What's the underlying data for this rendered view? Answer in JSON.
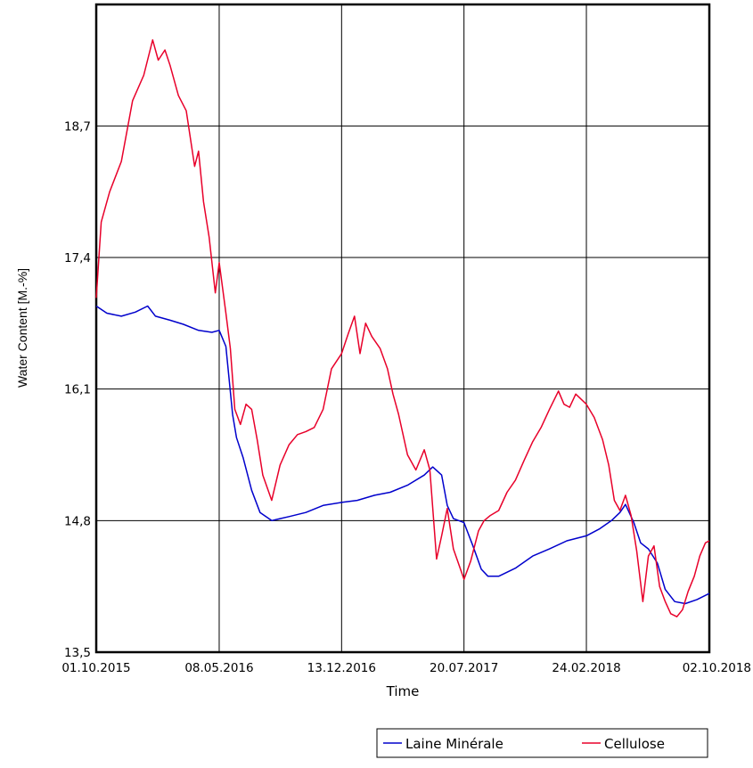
{
  "chart_data": {
    "type": "line",
    "title": "",
    "xlabel": "Time",
    "ylabel": "Water Content [M.-%]",
    "ylim": [
      13.5,
      19.9
    ],
    "yticks": [
      13.5,
      14.8,
      16.1,
      17.4,
      18.7
    ],
    "ytick_labels": [
      "13,5",
      "14,8",
      "16,1",
      "17,4",
      "18,7"
    ],
    "xlim": [
      "2015-10-01",
      "2018-10-02"
    ],
    "xticks": [
      "2015-10-01",
      "2016-05-08",
      "2016-12-13",
      "2017-07-20",
      "2018-02-24",
      "2018-10-02"
    ],
    "xtick_labels": [
      "01.10.2015",
      "08.05.2016",
      "13.12.2016",
      "20.07.2017",
      "24.02.2018",
      "02.10.2018"
    ],
    "grid": true,
    "legend": "bottom-right",
    "series": [
      {
        "name": "Laine Minérale",
        "color": "#0000cc",
        "x": [
          "2015-10-01",
          "2015-10-20",
          "2015-11-15",
          "2015-12-10",
          "2016-01-01",
          "2016-01-15",
          "2016-02-10",
          "2016-03-05",
          "2016-04-01",
          "2016-04-25",
          "2016-05-08",
          "2016-05-20",
          "2016-06-01",
          "2016-06-08",
          "2016-06-20",
          "2016-07-05",
          "2016-07-20",
          "2016-08-10",
          "2016-08-25",
          "2016-09-10",
          "2016-10-10",
          "2016-11-10",
          "2016-12-13",
          "2017-01-10",
          "2017-02-10",
          "2017-03-10",
          "2017-04-10",
          "2017-05-10",
          "2017-05-25",
          "2017-06-10",
          "2017-06-20",
          "2017-07-01",
          "2017-07-20",
          "2017-08-05",
          "2017-08-20",
          "2017-09-01",
          "2017-09-20",
          "2017-10-20",
          "2017-11-20",
          "2017-12-20",
          "2018-01-20",
          "2018-02-24",
          "2018-03-20",
          "2018-04-10",
          "2018-04-25",
          "2018-05-05",
          "2018-05-20",
          "2018-06-01",
          "2018-06-15",
          "2018-07-01",
          "2018-07-15",
          "2018-08-01",
          "2018-08-20",
          "2018-09-10",
          "2018-10-02"
        ],
        "values": [
          16.92,
          16.85,
          16.82,
          16.86,
          16.92,
          16.82,
          16.78,
          16.74,
          16.68,
          16.66,
          16.68,
          16.52,
          15.85,
          15.62,
          15.42,
          15.1,
          14.88,
          14.8,
          14.82,
          14.84,
          14.88,
          14.95,
          14.98,
          15.0,
          15.05,
          15.08,
          15.15,
          15.25,
          15.33,
          15.25,
          14.95,
          14.82,
          14.78,
          14.55,
          14.32,
          14.25,
          14.25,
          14.33,
          14.45,
          14.52,
          14.6,
          14.65,
          14.72,
          14.8,
          14.88,
          14.96,
          14.78,
          14.58,
          14.52,
          14.38,
          14.12,
          14.0,
          13.98,
          14.02,
          14.08
        ]
      },
      {
        "name": "Cellulose",
        "color": "#e8002a",
        "x": [
          "2015-10-01",
          "2015-10-10",
          "2015-10-25",
          "2015-11-15",
          "2015-12-05",
          "2015-12-25",
          "2016-01-10",
          "2016-01-20",
          "2016-02-01",
          "2016-02-10",
          "2016-02-25",
          "2016-03-10",
          "2016-03-25",
          "2016-04-01",
          "2016-04-10",
          "2016-04-20",
          "2016-05-01",
          "2016-05-08",
          "2016-05-20",
          "2016-05-28",
          "2016-06-05",
          "2016-06-15",
          "2016-06-25",
          "2016-07-05",
          "2016-07-15",
          "2016-07-25",
          "2016-08-10",
          "2016-08-25",
          "2016-09-10",
          "2016-09-25",
          "2016-10-10",
          "2016-10-25",
          "2016-11-10",
          "2016-11-25",
          "2016-12-13",
          "2016-12-25",
          "2017-01-05",
          "2017-01-15",
          "2017-01-25",
          "2017-02-05",
          "2017-02-20",
          "2017-03-05",
          "2017-03-15",
          "2017-03-25",
          "2017-04-10",
          "2017-04-25",
          "2017-05-10",
          "2017-05-20",
          "2017-06-01",
          "2017-06-10",
          "2017-06-20",
          "2017-07-01",
          "2017-07-20",
          "2017-08-01",
          "2017-08-15",
          "2017-08-25",
          "2017-09-05",
          "2017-09-20",
          "2017-10-05",
          "2017-10-20",
          "2017-11-05",
          "2017-11-20",
          "2017-12-05",
          "2017-12-20",
          "2018-01-05",
          "2018-01-15",
          "2018-01-25",
          "2018-02-05",
          "2018-02-24",
          "2018-03-10",
          "2018-03-25",
          "2018-04-05",
          "2018-04-15",
          "2018-04-25",
          "2018-05-05",
          "2018-05-15",
          "2018-05-25",
          "2018-06-05",
          "2018-06-15",
          "2018-06-25",
          "2018-07-05",
          "2018-07-15",
          "2018-07-25",
          "2018-08-05",
          "2018-08-15",
          "2018-08-25",
          "2018-09-05",
          "2018-09-15",
          "2018-09-25",
          "2018-10-02"
        ],
        "values": [
          17.0,
          17.75,
          18.05,
          18.35,
          18.95,
          19.2,
          19.55,
          19.35,
          19.45,
          19.3,
          19.0,
          18.85,
          18.3,
          18.45,
          17.95,
          17.6,
          17.05,
          17.35,
          16.85,
          16.5,
          15.9,
          15.75,
          15.95,
          15.9,
          15.6,
          15.25,
          15.0,
          15.35,
          15.55,
          15.65,
          15.68,
          15.72,
          15.9,
          16.3,
          16.45,
          16.65,
          16.82,
          16.45,
          16.75,
          16.62,
          16.5,
          16.3,
          16.05,
          15.85,
          15.45,
          15.3,
          15.5,
          15.3,
          14.42,
          14.65,
          14.92,
          14.52,
          14.22,
          14.4,
          14.7,
          14.8,
          14.85,
          14.9,
          15.08,
          15.2,
          15.4,
          15.58,
          15.72,
          15.9,
          16.08,
          15.95,
          15.92,
          16.05,
          15.95,
          15.82,
          15.6,
          15.35,
          15.0,
          14.9,
          15.05,
          14.85,
          14.5,
          14.0,
          14.45,
          14.55,
          14.15,
          14.0,
          13.88,
          13.85,
          13.92,
          14.1,
          14.25,
          14.45,
          14.58,
          14.6
        ]
      }
    ]
  }
}
